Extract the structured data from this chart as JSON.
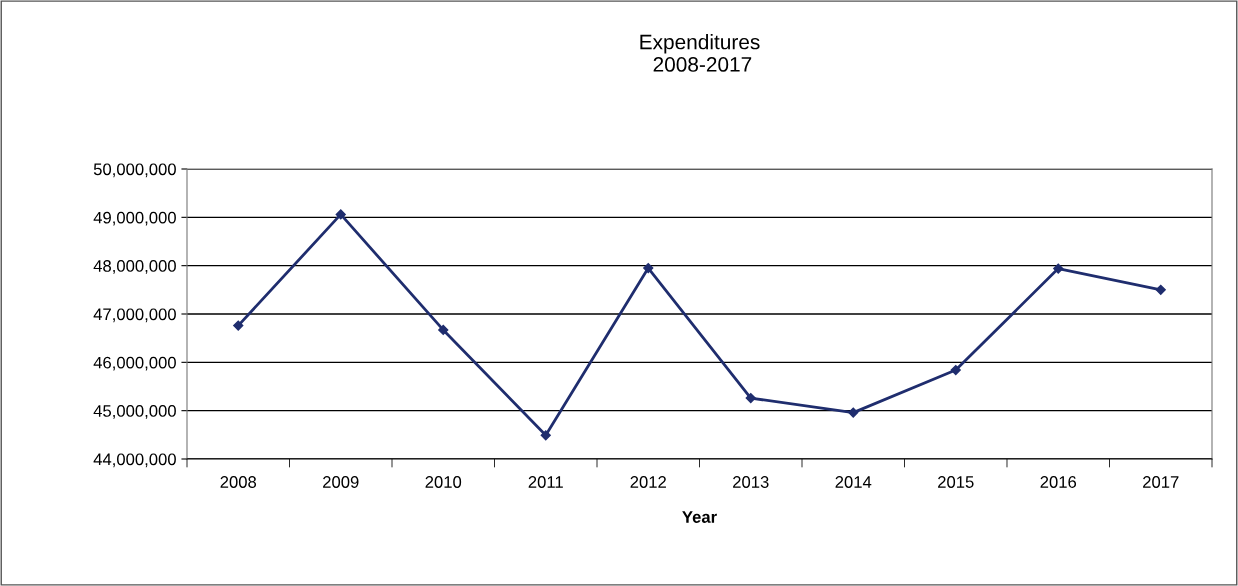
{
  "chart_data": {
    "type": "line",
    "title": "Expenditures\n 2008-2017",
    "xlabel": "Year",
    "categories": [
      "2008",
      "2009",
      "2010",
      "2011",
      "2012",
      "2013",
      "2014",
      "2015",
      "2016",
      "2017"
    ],
    "series": [
      {
        "color": "#1f2d6e",
        "values": [
          46760000,
          49060000,
          46670000,
          44490000,
          47950000,
          45260000,
          44960000,
          45840000,
          47940000,
          47500000
        ]
      }
    ],
    "ylim": [
      44000000,
      50000000
    ],
    "yticks": [
      {
        "value": 44000000,
        "label": "44,000,000"
      },
      {
        "value": 45000000,
        "label": "45,000,000"
      },
      {
        "value": 46000000,
        "label": "46,000,000"
      },
      {
        "value": 47000000,
        "label": "47,000,000"
      },
      {
        "value": 48000000,
        "label": "48,000,000"
      },
      {
        "value": 49000000,
        "label": "49,000,000"
      },
      {
        "value": 50000000,
        "label": "50,000,000"
      }
    ],
    "grid": "y",
    "marker": "diamond",
    "line_style": "solid"
  }
}
